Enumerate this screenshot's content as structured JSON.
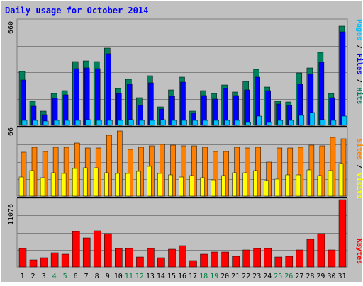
{
  "chart_data": [
    {
      "type": "bar",
      "panel": "pages-files-hits",
      "title": "Daily usage for October 2014",
      "ymax_label": "660",
      "ylim": [
        0,
        660
      ],
      "grid": true,
      "categories": [
        "1",
        "2",
        "3",
        "4",
        "5",
        "6",
        "7",
        "8",
        "9",
        "10",
        "11",
        "12",
        "13",
        "14",
        "15",
        "16",
        "17",
        "18",
        "19",
        "20",
        "21",
        "22",
        "23",
        "24",
        "25",
        "26",
        "27",
        "28",
        "29",
        "30",
        "31"
      ],
      "series": [
        {
          "name": "Hits",
          "values": [
            340,
            150,
            90,
            200,
            218,
            400,
            406,
            400,
            487,
            232,
            289,
            174,
            314,
            115,
            222,
            304,
            90,
            218,
            199,
            253,
            210,
            278,
            351,
            242,
            152,
            145,
            332,
            360,
            461,
            200,
            626
          ]
        },
        {
          "name": "Files",
          "values": [
            285,
            120,
            67,
            170,
            190,
            355,
            361,
            356,
            451,
            200,
            259,
            125,
            269,
            102,
            184,
            272,
            75,
            186,
            167,
            233,
            187,
            225,
            305,
            219,
            135,
            127,
            258,
            322,
            395,
            173,
            590
          ]
        },
        {
          "name": "Pages",
          "values": [
            30,
            32,
            28,
            30,
            31,
            32,
            35,
            33,
            33,
            29,
            35,
            30,
            30,
            34,
            31,
            33,
            30,
            29,
            30,
            33,
            31,
            20,
            60,
            20,
            30,
            29,
            62,
            82,
            35,
            30,
            58
          ]
        }
      ],
      "colors": {
        "Hits": "#00805c",
        "Files": "#0000ff",
        "Pages": "#00c0ff"
      },
      "labels": {
        "pages": "Pages",
        "files": "Files",
        "hits": "Hits"
      }
    },
    {
      "type": "bar",
      "panel": "sites-visits",
      "ymax_label": "66",
      "ylim": [
        0,
        66
      ],
      "grid": true,
      "categories": [
        "1",
        "2",
        "3",
        "4",
        "5",
        "6",
        "7",
        "8",
        "9",
        "10",
        "11",
        "12",
        "13",
        "14",
        "15",
        "16",
        "17",
        "18",
        "19",
        "20",
        "21",
        "22",
        "23",
        "24",
        "25",
        "26",
        "27",
        "28",
        "29",
        "30",
        "31"
      ],
      "series": [
        {
          "name": "Sites",
          "values": [
            43,
            48,
            44,
            48,
            48,
            52,
            47,
            47,
            60,
            64,
            46,
            48,
            49,
            51,
            50,
            49,
            49,
            48,
            44,
            44,
            48,
            47,
            48,
            33,
            47,
            47,
            48,
            50,
            49,
            58,
            56
          ]
        },
        {
          "name": "Visits",
          "values": [
            19,
            25,
            18,
            23,
            22,
            27,
            28,
            28,
            23,
            22,
            22,
            24,
            29,
            22,
            21,
            19,
            20,
            18,
            16,
            20,
            23,
            23,
            25,
            15,
            17,
            21,
            21,
            26,
            20,
            25,
            32
          ]
        }
      ],
      "colors": {
        "Sites": "#ff8000",
        "Visits": "#ffff00"
      },
      "labels": {
        "sites": "Sites",
        "visits": "Visits"
      }
    },
    {
      "type": "bar",
      "panel": "kbytes",
      "ymax_label": "11076",
      "ylim": [
        0,
        11076
      ],
      "grid": true,
      "categories": [
        "1",
        "2",
        "3",
        "4",
        "5",
        "6",
        "7",
        "8",
        "9",
        "10",
        "11",
        "12",
        "13",
        "14",
        "15",
        "16",
        "17",
        "18",
        "19",
        "20",
        "21",
        "22",
        "23",
        "24",
        "25",
        "26",
        "27",
        "28",
        "29",
        "30",
        "31"
      ],
      "series": [
        {
          "name": "KBytes",
          "values": [
            3000,
            1200,
            1500,
            2300,
            2100,
            5800,
            4800,
            5900,
            5500,
            3000,
            3000,
            1600,
            3000,
            1500,
            2900,
            3500,
            1100,
            2100,
            2400,
            2400,
            1800,
            2800,
            3000,
            3000,
            1600,
            1700,
            2800,
            4500,
            5500,
            2800,
            11076
          ]
        }
      ],
      "colors": {
        "KBytes": "#ff0000"
      },
      "labels": {
        "kbytes": "KBytes"
      }
    }
  ],
  "x_axis": {
    "labels": [
      "1",
      "2",
      "3",
      "4",
      "5",
      "6",
      "7",
      "8",
      "9",
      "10",
      "11",
      "12",
      "13",
      "14",
      "15",
      "16",
      "17",
      "18",
      "19",
      "20",
      "21",
      "22",
      "23",
      "24",
      "25",
      "26",
      "27",
      "28",
      "29",
      "30",
      "31"
    ],
    "weekend_days": [
      "4",
      "5",
      "11",
      "12",
      "18",
      "19",
      "25",
      "26"
    ],
    "weekday_color": "#000000",
    "weekend_color": "#008040"
  },
  "theme": {
    "background": "#c0c0c0",
    "title_color": "#0000ff",
    "separator_color": "#000000"
  }
}
